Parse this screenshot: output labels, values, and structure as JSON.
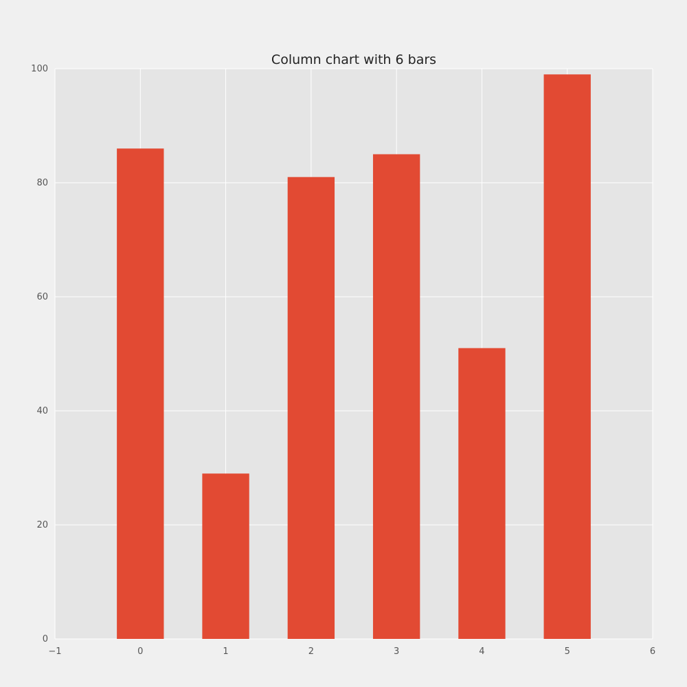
{
  "chart_data": {
    "type": "bar",
    "title": "Column chart with 6 bars",
    "xlabel": "",
    "ylabel": "",
    "x": [
      0,
      1,
      2,
      3,
      4,
      5
    ],
    "values": [
      86,
      29,
      81,
      85,
      51,
      99
    ],
    "bar_width": 0.55,
    "xlim": [
      -1,
      6
    ],
    "ylim": [
      0,
      100
    ],
    "xticks": [
      -1,
      0,
      1,
      2,
      3,
      4,
      5,
      6
    ],
    "xtick_labels": [
      "−1",
      "0",
      "1",
      "2",
      "3",
      "4",
      "5",
      "6"
    ],
    "yticks": [
      0,
      20,
      40,
      60,
      80,
      100
    ],
    "ytick_labels": [
      "0",
      "20",
      "40",
      "60",
      "80",
      "100"
    ],
    "grid": true,
    "legend": "none",
    "colors": {
      "bar": "#e24a33",
      "plot_background": "#e5e5e5",
      "figure_background": "#f0f0f0",
      "grid": "#ffffff"
    }
  }
}
